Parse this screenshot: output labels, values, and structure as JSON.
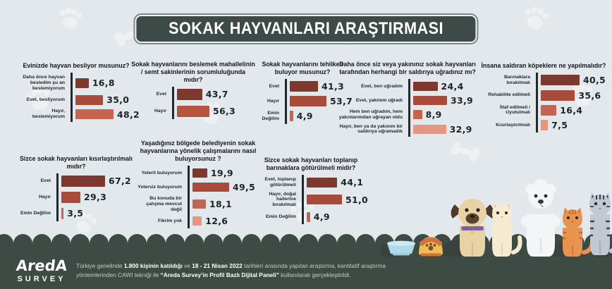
{
  "title": "SOKAK HAYVANLARI ARAŞTIRMASI",
  "colors": {
    "background": "#e3e8ec",
    "banner": "#3d4a47",
    "footer": "#3e4b45",
    "bar_palette": [
      "#7e392e",
      "#a84b3a",
      "#c6654f",
      "#e8957f"
    ],
    "value_text": "#1d232a"
  },
  "chart_data": [
    {
      "type": "bar",
      "orientation": "horizontal",
      "title": "Evinizde hayvan besliyor musunuz?",
      "categories": [
        "Daha önce hayvan besledim şu an beslemiyorum",
        "Evet, besliyorum",
        "Hayır, beslemiyorum"
      ],
      "values": [
        16.8,
        35.0,
        48.2
      ],
      "value_labels": [
        "16,8",
        "35,0",
        "48,2"
      ],
      "bar_colors": [
        "#7e392e",
        "#a84b3a",
        "#c6654f"
      ]
    },
    {
      "type": "bar",
      "orientation": "horizontal",
      "title": "Sokak hayvanlarını beslemek mahallelinin / semt sakinlerinin sorumluluğunda mıdır?",
      "categories": [
        "Evet",
        "Hayır"
      ],
      "values": [
        43.7,
        56.3
      ],
      "value_labels": [
        "43,7",
        "56,3"
      ],
      "bar_colors": [
        "#7e392e",
        "#b5553f"
      ]
    },
    {
      "type": "bar",
      "orientation": "horizontal",
      "title": "Sokak hayvanlarını tehlikeli buluyor musunuz?",
      "categories": [
        "Evet",
        "Hayır",
        "Emin Değilim"
      ],
      "values": [
        41.3,
        53.7,
        4.9
      ],
      "value_labels": [
        "41,3",
        "53,7",
        "4,9"
      ],
      "bar_colors": [
        "#7e392e",
        "#a84b3a",
        "#c6654f"
      ]
    },
    {
      "type": "bar",
      "orientation": "horizontal",
      "title": "Daha önce siz veya yakınınız sokak hayvanları tarafından herhangi bir saldırıya uğradınız mı?",
      "categories": [
        "Evet, ben uğradım",
        "Evet, yakınım uğradı",
        "Hem ben uğradım, hem yakınlarımdan uğrayan oldu",
        "Hayır, ben ya da yakınım bir saldırıya uğramadık"
      ],
      "values": [
        24.4,
        33.9,
        8.9,
        32.9
      ],
      "value_labels": [
        "24,4",
        "33,9",
        "8,9",
        "32,9"
      ],
      "bar_colors": [
        "#7e392e",
        "#a84b3a",
        "#c6654f",
        "#e8957f"
      ]
    },
    {
      "type": "bar",
      "orientation": "horizontal",
      "title": "İnsana saldıran köpeklere ne yapılmalıdır?",
      "categories": [
        "Barınaklara bırakılmalı",
        "Rehabilite edilmeli",
        "İtlaf edilmeli / Uyutulmalı",
        "Kısırlaştırılmalı"
      ],
      "values": [
        40.5,
        35.6,
        16.4,
        7.5
      ],
      "value_labels": [
        "40,5",
        "35,6",
        "16,4",
        "7,5"
      ],
      "bar_colors": [
        "#7e392e",
        "#a84b3a",
        "#c6654f",
        "#e8957f"
      ]
    },
    {
      "type": "bar",
      "orientation": "horizontal",
      "title": "Sizce sokak hayvanları kısırlaştırılmalı mıdır?",
      "categories": [
        "Evet",
        "Hayır",
        "Emin Değilim"
      ],
      "values": [
        67.2,
        29.3,
        3.5
      ],
      "value_labels": [
        "67,2",
        "29,3",
        "3,5"
      ],
      "bar_colors": [
        "#7e392e",
        "#a84b3a",
        "#c6654f"
      ]
    },
    {
      "type": "bar",
      "orientation": "horizontal",
      "title": "Yaşadığınız bölgede belediyenin sokak hayvanlarına yönelik çalışmalarını nasıl buluyorsunuz ?",
      "categories": [
        "Yeterli buluyorum",
        "Yetersiz buluyorum",
        "Bu konuda bir çalışma mevcut değil",
        "Fikrim yok"
      ],
      "values": [
        19.9,
        49.5,
        18.1,
        12.6
      ],
      "value_labels": [
        "19,9",
        "49,5",
        "18,1",
        "12,6"
      ],
      "bar_colors": [
        "#7e392e",
        "#a84b3a",
        "#c6654f",
        "#e8957f"
      ]
    },
    {
      "type": "bar",
      "orientation": "horizontal",
      "title": "Sizce sokak hayvanları toplanıp barınaklara götürülmeli midir?",
      "categories": [
        "Evet, toplanıp götürülmeli",
        "Hayır, doğal hallerine bırakılmalı",
        "Emin Değilim"
      ],
      "values": [
        44.1,
        51.0,
        4.9
      ],
      "value_labels": [
        "44,1",
        "51,0",
        "4,9"
      ],
      "bar_colors": [
        "#7e392e",
        "#a84b3a",
        "#c6654f"
      ]
    }
  ],
  "footer": {
    "logo_line1": "AredA",
    "logo_line2": "SURVEY",
    "segments": [
      {
        "text": "Türkiye genelinde ",
        "bold": false
      },
      {
        "text": "1.800 kişinin katıldığı",
        "bold": true
      },
      {
        "text": " ve ",
        "bold": false
      },
      {
        "text": "18 - 21 Nisan 2022",
        "bold": true
      },
      {
        "text": " tarihleri arasında yapılan araştırma, kantitatif araştırma yöntemlerinden CAWI tekniği ile ",
        "bold": false
      },
      {
        "text": "“Areda Survey’in Profil Bazlı Dijital Paneli”",
        "bold": true
      },
      {
        "text": " kullanılarak gerçekleştirildi.",
        "bold": false
      }
    ]
  },
  "decor": {
    "background_icons": [
      "paw-print-pattern",
      "bone-pattern"
    ],
    "animals": [
      "pug-dog",
      "cream-cat",
      "white-poodle",
      "orange-cat",
      "gray-tabby-cat"
    ],
    "objects": [
      "blue-food-bowl",
      "yellow-paw-bowl",
      "bushes"
    ]
  }
}
